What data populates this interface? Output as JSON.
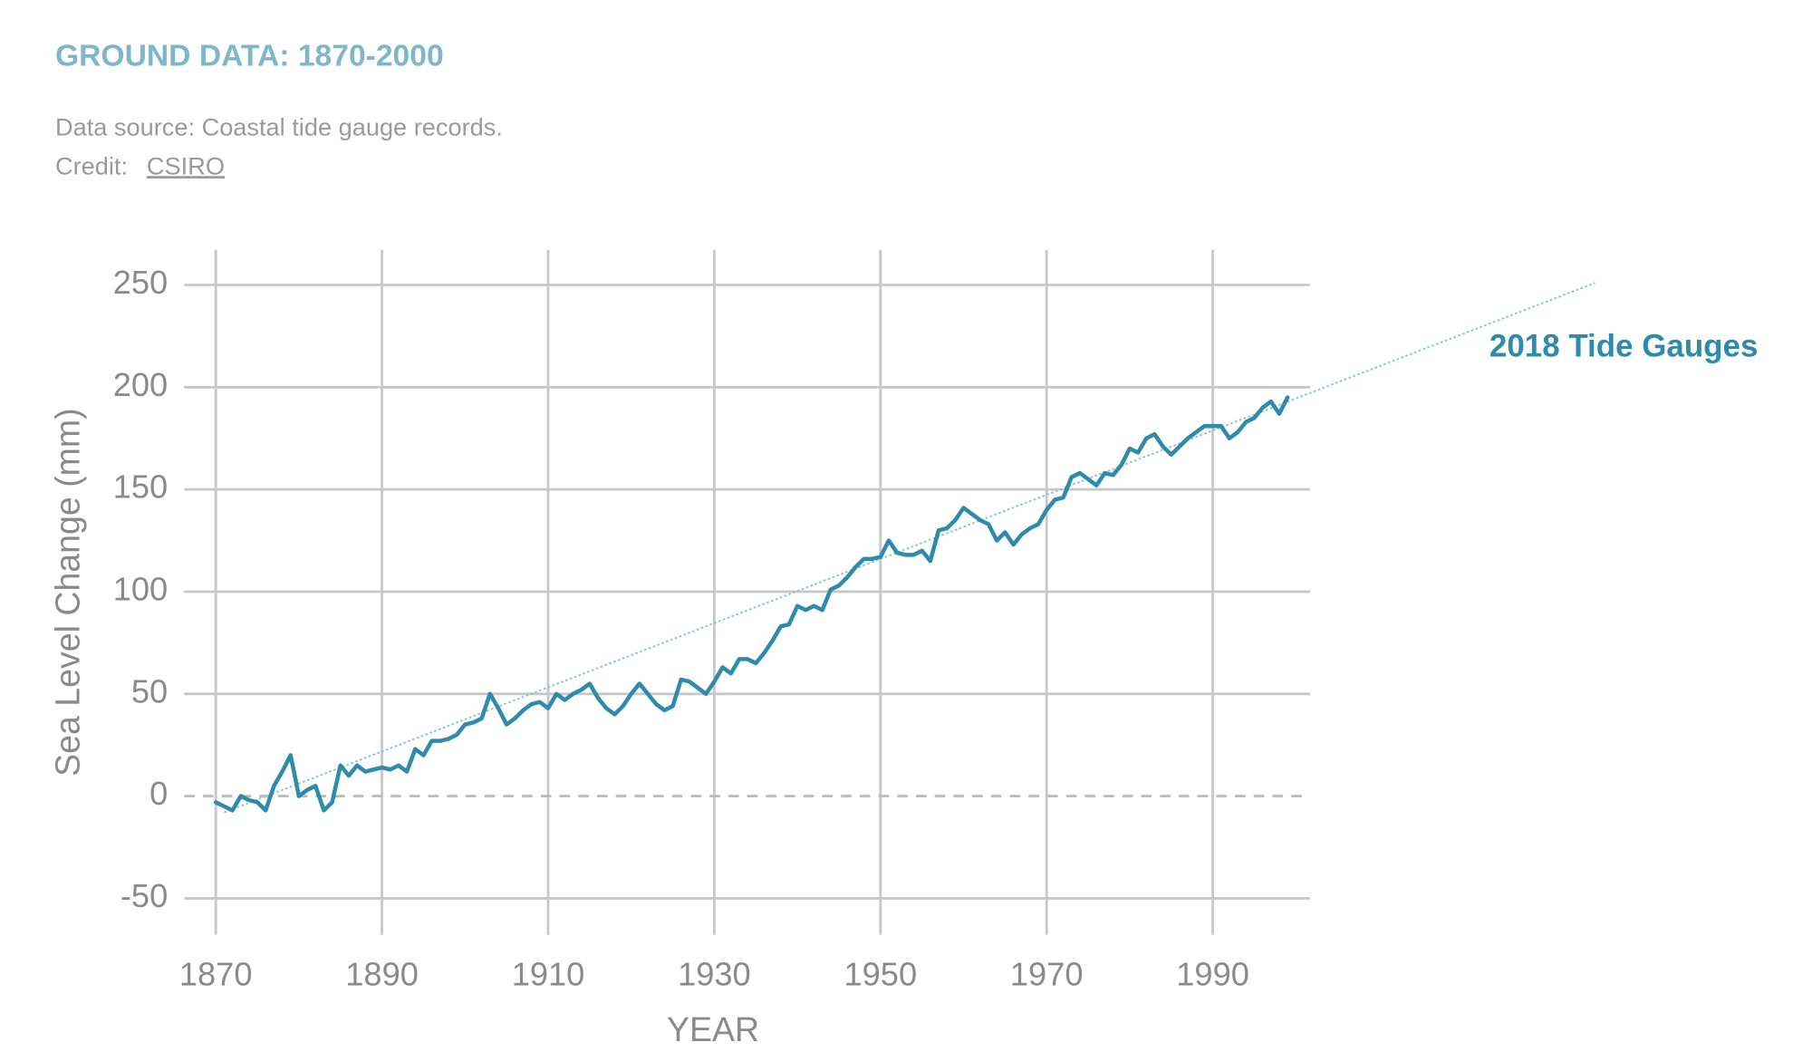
{
  "chart_data": {
    "type": "line",
    "title": "GROUND DATA: 1870-2000",
    "subtitle": "Data source: Coastal tide gauge records.",
    "credit_label": "Credit:",
    "credit_link": "CSIRO",
    "x_label": "YEAR",
    "y_label": "Sea Level Change (mm)",
    "x": [
      1870,
      1871,
      1872,
      1873,
      1874,
      1875,
      1876,
      1877,
      1878,
      1879,
      1880,
      1881,
      1882,
      1883,
      1884,
      1885,
      1886,
      1887,
      1888,
      1889,
      1890,
      1891,
      1892,
      1893,
      1894,
      1895,
      1896,
      1897,
      1898,
      1899,
      1900,
      1901,
      1902,
      1903,
      1904,
      1905,
      1906,
      1907,
      1908,
      1909,
      1910,
      1911,
      1912,
      1913,
      1914,
      1915,
      1916,
      1917,
      1918,
      1919,
      1920,
      1921,
      1922,
      1923,
      1924,
      1925,
      1926,
      1927,
      1928,
      1929,
      1930,
      1931,
      1932,
      1933,
      1934,
      1935,
      1936,
      1937,
      1938,
      1939,
      1940,
      1941,
      1942,
      1943,
      1944,
      1945,
      1946,
      1947,
      1948,
      1949,
      1950,
      1951,
      1952,
      1953,
      1954,
      1955,
      1956,
      1957,
      1958,
      1959,
      1960,
      1961,
      1962,
      1963,
      1964,
      1965,
      1966,
      1967,
      1968,
      1969,
      1970,
      1971,
      1972,
      1973,
      1974,
      1975,
      1976,
      1977,
      1978,
      1979,
      1980,
      1981,
      1982,
      1983,
      1984,
      1985,
      1986,
      1987,
      1988,
      1989,
      1990,
      1991,
      1992,
      1993,
      1994,
      1995,
      1996,
      1997,
      1998,
      1999
    ],
    "series": [
      {
        "name": "2018 Tide Gauges",
        "color": "#2e8bab",
        "values": [
          -3,
          -5,
          -7,
          0,
          -2,
          -3,
          -7,
          5,
          12,
          20,
          0,
          3,
          5,
          -7,
          -3,
          15,
          10,
          15,
          12,
          13,
          14,
          13,
          15,
          12,
          23,
          20,
          27,
          27,
          28,
          30,
          35,
          36,
          38,
          50,
          43,
          35,
          38,
          42,
          45,
          46,
          43,
          50,
          47,
          50,
          52,
          55,
          48,
          43,
          40,
          44,
          50,
          55,
          50,
          45,
          42,
          44,
          57,
          56,
          53,
          50,
          56,
          63,
          60,
          67,
          67,
          65,
          70,
          76,
          83,
          84,
          93,
          91,
          93,
          91,
          101,
          103,
          107,
          112,
          116,
          116,
          117,
          125,
          119,
          118,
          118,
          120,
          115,
          130,
          131,
          135,
          141,
          138,
          135,
          133,
          125,
          129,
          123,
          128,
          131,
          133,
          140,
          145,
          146,
          156,
          158,
          155,
          152,
          158,
          157,
          162,
          170,
          168,
          175,
          177,
          171,
          167,
          171,
          175,
          178,
          181,
          181,
          181,
          175,
          178,
          183,
          185,
          190,
          193,
          187,
          195
        ]
      }
    ],
    "trend": {
      "x": [
        1871,
        2036
      ],
      "values": [
        -8,
        251
      ],
      "color": "#8cc3d3"
    },
    "xlim": [
      1866.2,
      2001.7
    ],
    "ylim": [
      -67.8,
      267.2
    ],
    "xticks": [
      1870,
      1890,
      1910,
      1930,
      1950,
      1970,
      1990
    ],
    "yticks": [
      -50,
      0,
      50,
      100,
      150,
      200,
      250
    ],
    "grid": true
  }
}
